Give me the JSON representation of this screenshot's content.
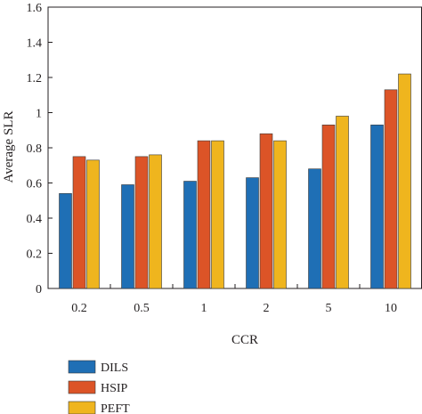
{
  "chart_data": {
    "type": "bar",
    "xlabel": "CCR",
    "ylabel": "Average SLR",
    "categories": [
      "0.2",
      "0.5",
      "1",
      "2",
      "5",
      "10"
    ],
    "ylim": [
      0,
      1.6
    ],
    "yticks": [
      "0",
      "0.2",
      "0.4",
      "0.6",
      "0.8",
      "1",
      "1.2",
      "1.4",
      "1.6"
    ],
    "grid": false,
    "legend_position": "bottom-left",
    "series": [
      {
        "name": "DILS",
        "color": "#1f6fb5",
        "values": [
          0.54,
          0.59,
          0.61,
          0.63,
          0.68,
          0.93
        ]
      },
      {
        "name": "HSIP",
        "color": "#dc5427",
        "values": [
          0.75,
          0.75,
          0.84,
          0.88,
          0.93,
          1.13
        ]
      },
      {
        "name": "PEFT",
        "color": "#efb51e",
        "values": [
          0.73,
          0.76,
          0.84,
          0.84,
          0.98,
          1.22
        ]
      }
    ]
  }
}
